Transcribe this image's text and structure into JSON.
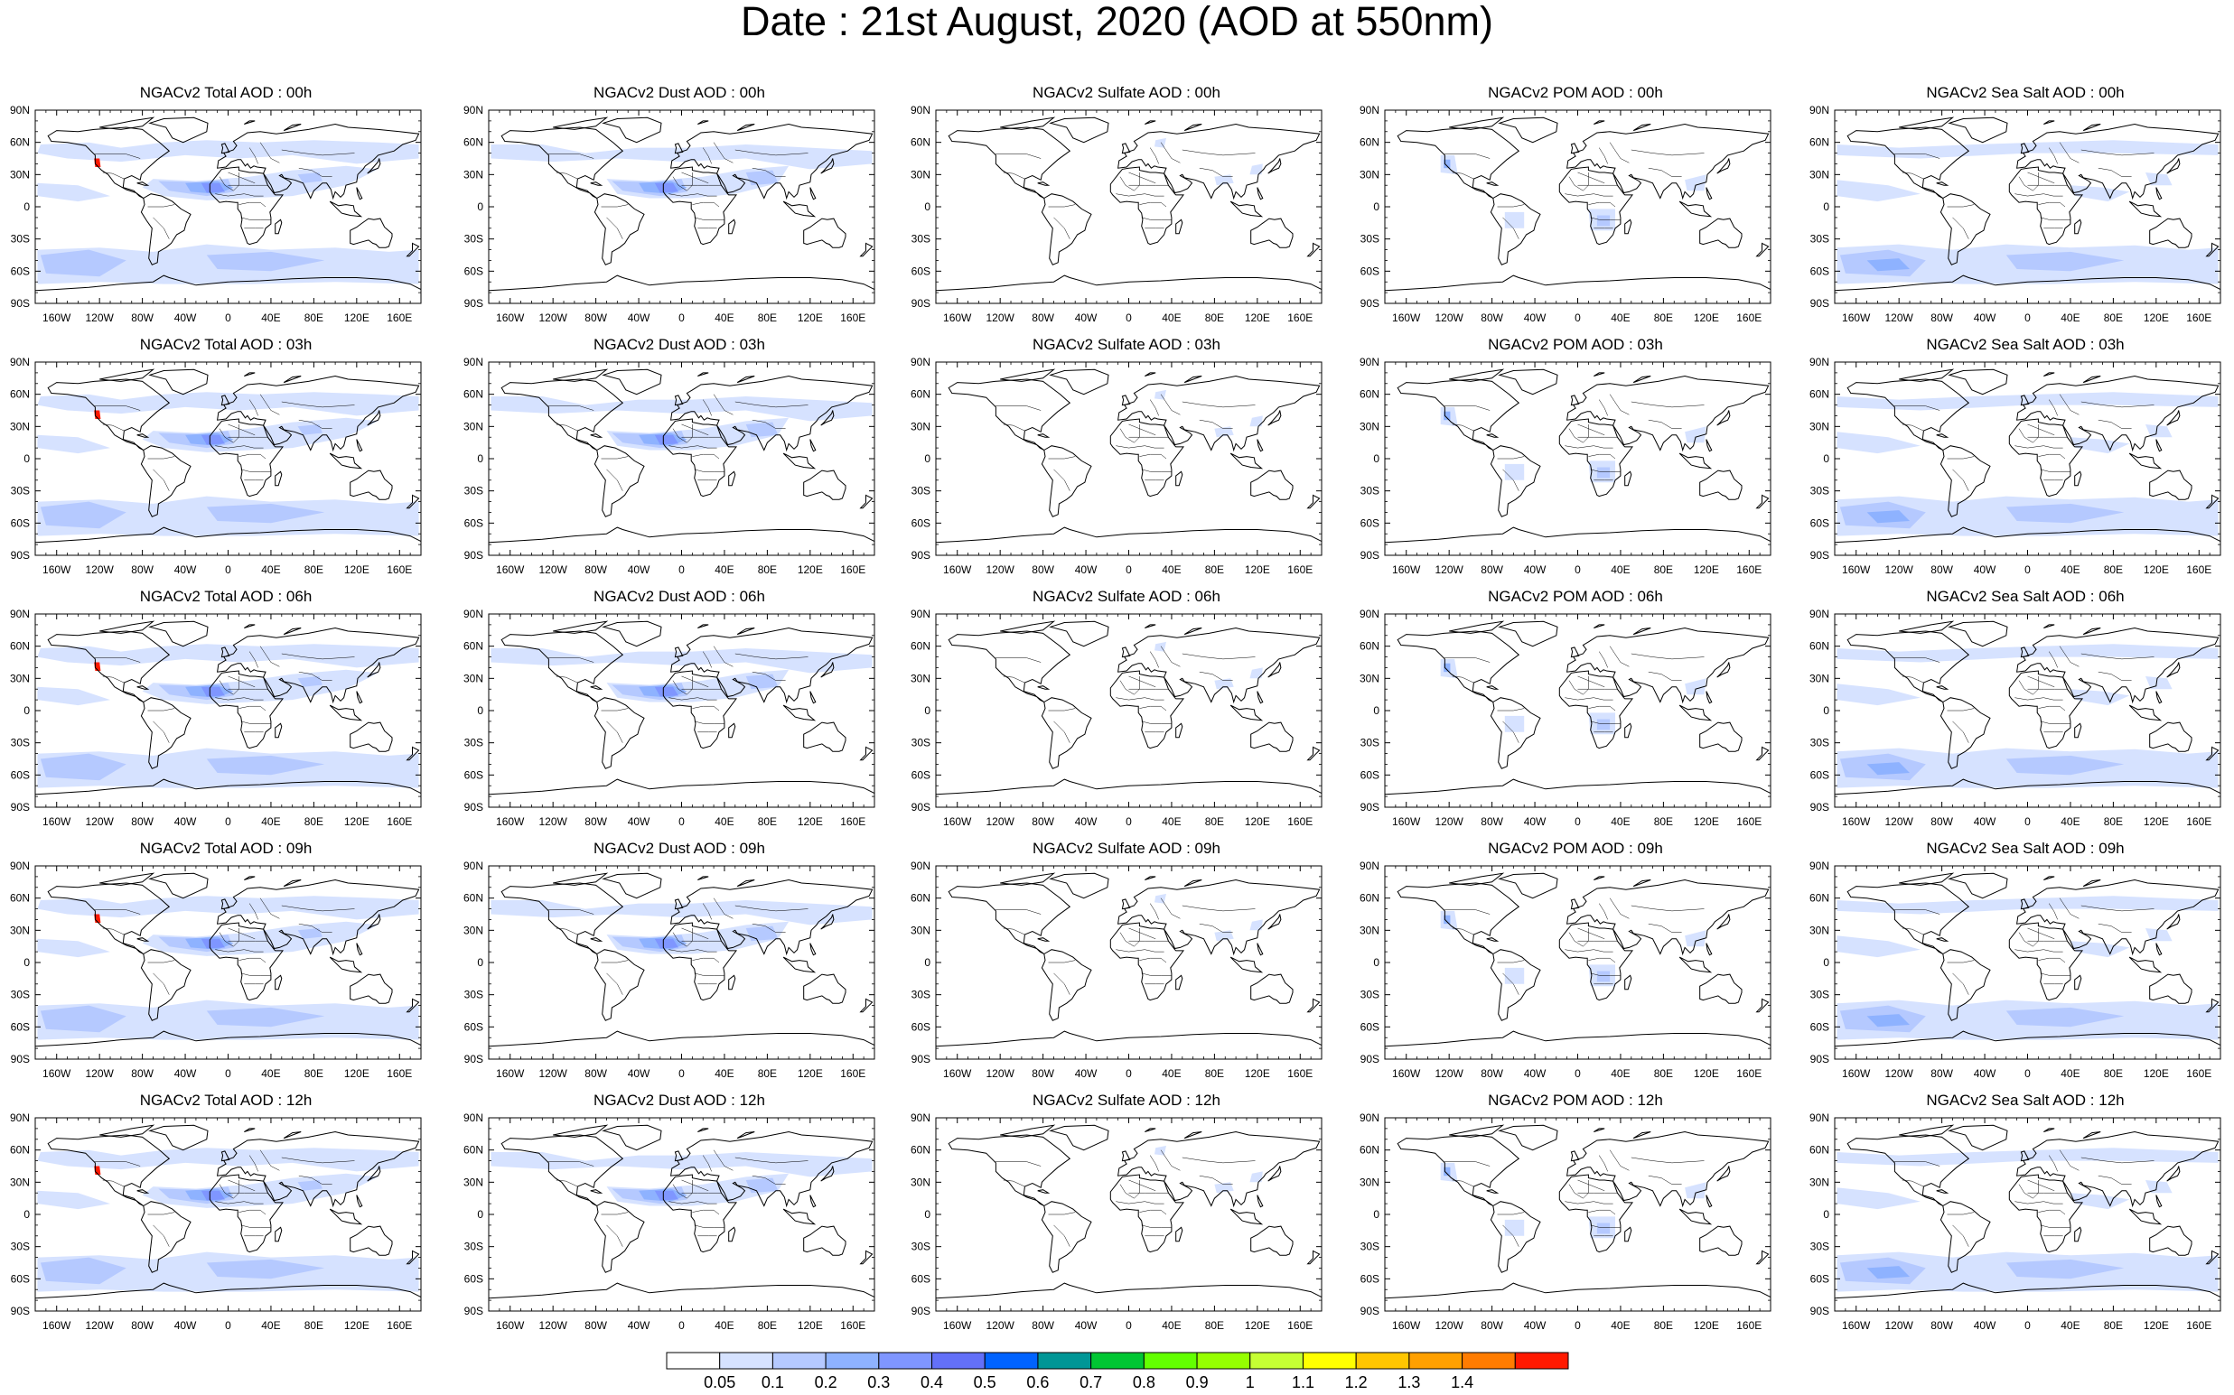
{
  "title": "Date : 21st August, 2020 (AOD at 550nm)",
  "columns": [
    {
      "name": "total",
      "label": "Total"
    },
    {
      "name": "dust",
      "label": "Dust"
    },
    {
      "name": "sulfate",
      "label": "Sulfate"
    },
    {
      "name": "pom",
      "label": "POM"
    },
    {
      "name": "seasalt",
      "label": "Sea Salt"
    }
  ],
  "panels": [
    [
      "NGACv2 Total AOD : 00h",
      "NGACv2 Dust AOD : 00h",
      "NGACv2 Sulfate AOD : 00h",
      "NGACv2 POM AOD : 00h",
      "NGACv2 Sea Salt AOD : 00h"
    ],
    [
      "NGACv2 Total AOD : 03h",
      "NGACv2 Dust AOD : 03h",
      "NGACv2 Sulfate AOD : 03h",
      "NGACv2 POM AOD : 03h",
      "NGACv2 Sea Salt AOD : 03h"
    ],
    [
      "NGACv2 Total AOD : 06h",
      "NGACv2 Dust AOD : 06h",
      "NGACv2 Sulfate AOD : 06h",
      "NGACv2 POM AOD : 06h",
      "NGACv2 Sea Salt AOD : 06h"
    ],
    [
      "NGACv2 Total AOD : 09h",
      "NGACv2 Dust AOD : 09h",
      "NGACv2 Sulfate AOD : 09h",
      "NGACv2 POM AOD : 09h",
      "NGACv2 Sea Salt  AOD : 09h"
    ],
    [
      "NGACv2 Total AOD  : 12h",
      "NGACv2 Dust AOD : 12h",
      "NGACv2 Sulfate AOD : 12h",
      "NGACv2 POM  AOD : 12h",
      "NGACv2 Sea Salt  AOD : 12h"
    ]
  ],
  "lat_labels": [
    "90N",
    "60N",
    "30N",
    "0",
    "30S",
    "60S",
    "90S"
  ],
  "lon_labels": [
    "160W",
    "120W",
    "80W",
    "40W",
    "0",
    "40E",
    "80E",
    "120E",
    "160E"
  ],
  "colorbar": {
    "labels": [
      "0.05",
      "0.1",
      "0.2",
      "0.3",
      "0.4",
      "0.5",
      "0.6",
      "0.7",
      "0.8",
      "0.9",
      "1",
      "1.1",
      "1.2",
      "1.3",
      "1.4"
    ],
    "colors": [
      "#ffffff",
      "#d6e2ff",
      "#b5c9ff",
      "#8eb2ff",
      "#7f96ff",
      "#6370f8",
      "#0063ff",
      "#009696",
      "#00c633",
      "#63ff00",
      "#96ff00",
      "#c6ff33",
      "#ffff00",
      "#ffc600",
      "#ffa000",
      "#ff7c00",
      "#ff1900"
    ]
  },
  "colors": {
    "aod_light": "#d6e2ff",
    "aod_mid": "#b5c9ff",
    "aod_high": "#8eb2ff",
    "aod_strong": "#7f96ff",
    "coastline": "#000000"
  }
}
